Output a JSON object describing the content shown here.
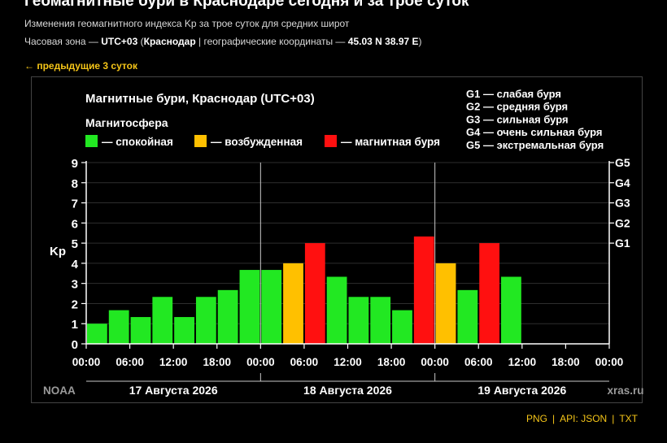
{
  "header": {
    "title": "Геомагнитные бури в Краснодаре сегодня и за трое суток",
    "subtitle": "Изменения геомагнитного индекса Kp за трое суток для средних широт",
    "tz_prefix": "Часовая зона — ",
    "tz_value": "UTC+03",
    "tz_open": " (",
    "city": "Краснодар",
    "tz_mid": " | географические координаты — ",
    "coords": "45.03 N 38.97 E",
    "tz_close": ")"
  },
  "nav": {
    "prev_label": "← предыдущие 3 суток"
  },
  "footer": {
    "png_label": "PNG",
    "sep": "|",
    "api_label": "API:",
    "json_label": "JSON",
    "txt_label": "TXT"
  },
  "colors": {
    "calm": "#22e822",
    "excited": "#ffc000",
    "storm": "#ff1010",
    "gold": "#f5c518"
  },
  "chart_data": {
    "type": "bar",
    "title": "Магнитные бури, Краснодар (UTC+03)",
    "legend_title": "Магнитосфера",
    "legend": [
      {
        "key": "calm",
        "label": "— спокойная"
      },
      {
        "key": "excited",
        "label": "— возбужденная"
      },
      {
        "key": "storm",
        "label": "— магнитная буря"
      }
    ],
    "storm_scale": [
      {
        "level": "G1",
        "text": "G1 — слабая буря",
        "kp": 5
      },
      {
        "level": "G2",
        "text": "G2 — средняя буря",
        "kp": 6
      },
      {
        "level": "G3",
        "text": "G3 — сильная буря",
        "kp": 7
      },
      {
        "level": "G4",
        "text": "G4 — очень сильная буря",
        "kp": 8
      },
      {
        "level": "G5",
        "text": "G5 — экстремальная буря",
        "kp": 9
      }
    ],
    "ylabel": "Kp",
    "ylim": [
      0,
      9
    ],
    "yticks": [
      "0",
      "1",
      "2",
      "3",
      "4",
      "5",
      "6",
      "7",
      "8",
      "9"
    ],
    "xtick_labels": [
      "00:00",
      "06:00",
      "12:00",
      "18:00",
      "00:00",
      "06:00",
      "12:00",
      "18:00",
      "00:00",
      "06:00",
      "12:00",
      "18:00",
      "00:00"
    ],
    "days": [
      "17 Августа 2026",
      "18 Августа 2026",
      "19 Августа 2026"
    ],
    "bars": [
      {
        "day": 0,
        "slot": 0,
        "kp": 1.0,
        "level": "calm"
      },
      {
        "day": 0,
        "slot": 1,
        "kp": 1.67,
        "level": "calm"
      },
      {
        "day": 0,
        "slot": 2,
        "kp": 1.33,
        "level": "calm"
      },
      {
        "day": 0,
        "slot": 3,
        "kp": 2.33,
        "level": "calm"
      },
      {
        "day": 0,
        "slot": 4,
        "kp": 1.33,
        "level": "calm"
      },
      {
        "day": 0,
        "slot": 5,
        "kp": 2.33,
        "level": "calm"
      },
      {
        "day": 0,
        "slot": 6,
        "kp": 2.67,
        "level": "calm"
      },
      {
        "day": 0,
        "slot": 7,
        "kp": 3.67,
        "level": "calm"
      },
      {
        "day": 1,
        "slot": 0,
        "kp": 3.67,
        "level": "calm"
      },
      {
        "day": 1,
        "slot": 1,
        "kp": 4.0,
        "level": "excited"
      },
      {
        "day": 1,
        "slot": 2,
        "kp": 5.0,
        "level": "storm"
      },
      {
        "day": 1,
        "slot": 3,
        "kp": 3.33,
        "level": "calm"
      },
      {
        "day": 1,
        "slot": 4,
        "kp": 2.33,
        "level": "calm"
      },
      {
        "day": 1,
        "slot": 5,
        "kp": 2.33,
        "level": "calm"
      },
      {
        "day": 1,
        "slot": 6,
        "kp": 1.67,
        "level": "calm"
      },
      {
        "day": 1,
        "slot": 7,
        "kp": 5.33,
        "level": "storm"
      },
      {
        "day": 2,
        "slot": 0,
        "kp": 4.0,
        "level": "excited"
      },
      {
        "day": 2,
        "slot": 1,
        "kp": 2.67,
        "level": "calm"
      },
      {
        "day": 2,
        "slot": 2,
        "kp": 5.0,
        "level": "storm"
      },
      {
        "day": 2,
        "slot": 3,
        "kp": 3.33,
        "level": "calm"
      }
    ],
    "watermark_left": "NOAA",
    "watermark_right": "xras.ru",
    "grid": true
  }
}
